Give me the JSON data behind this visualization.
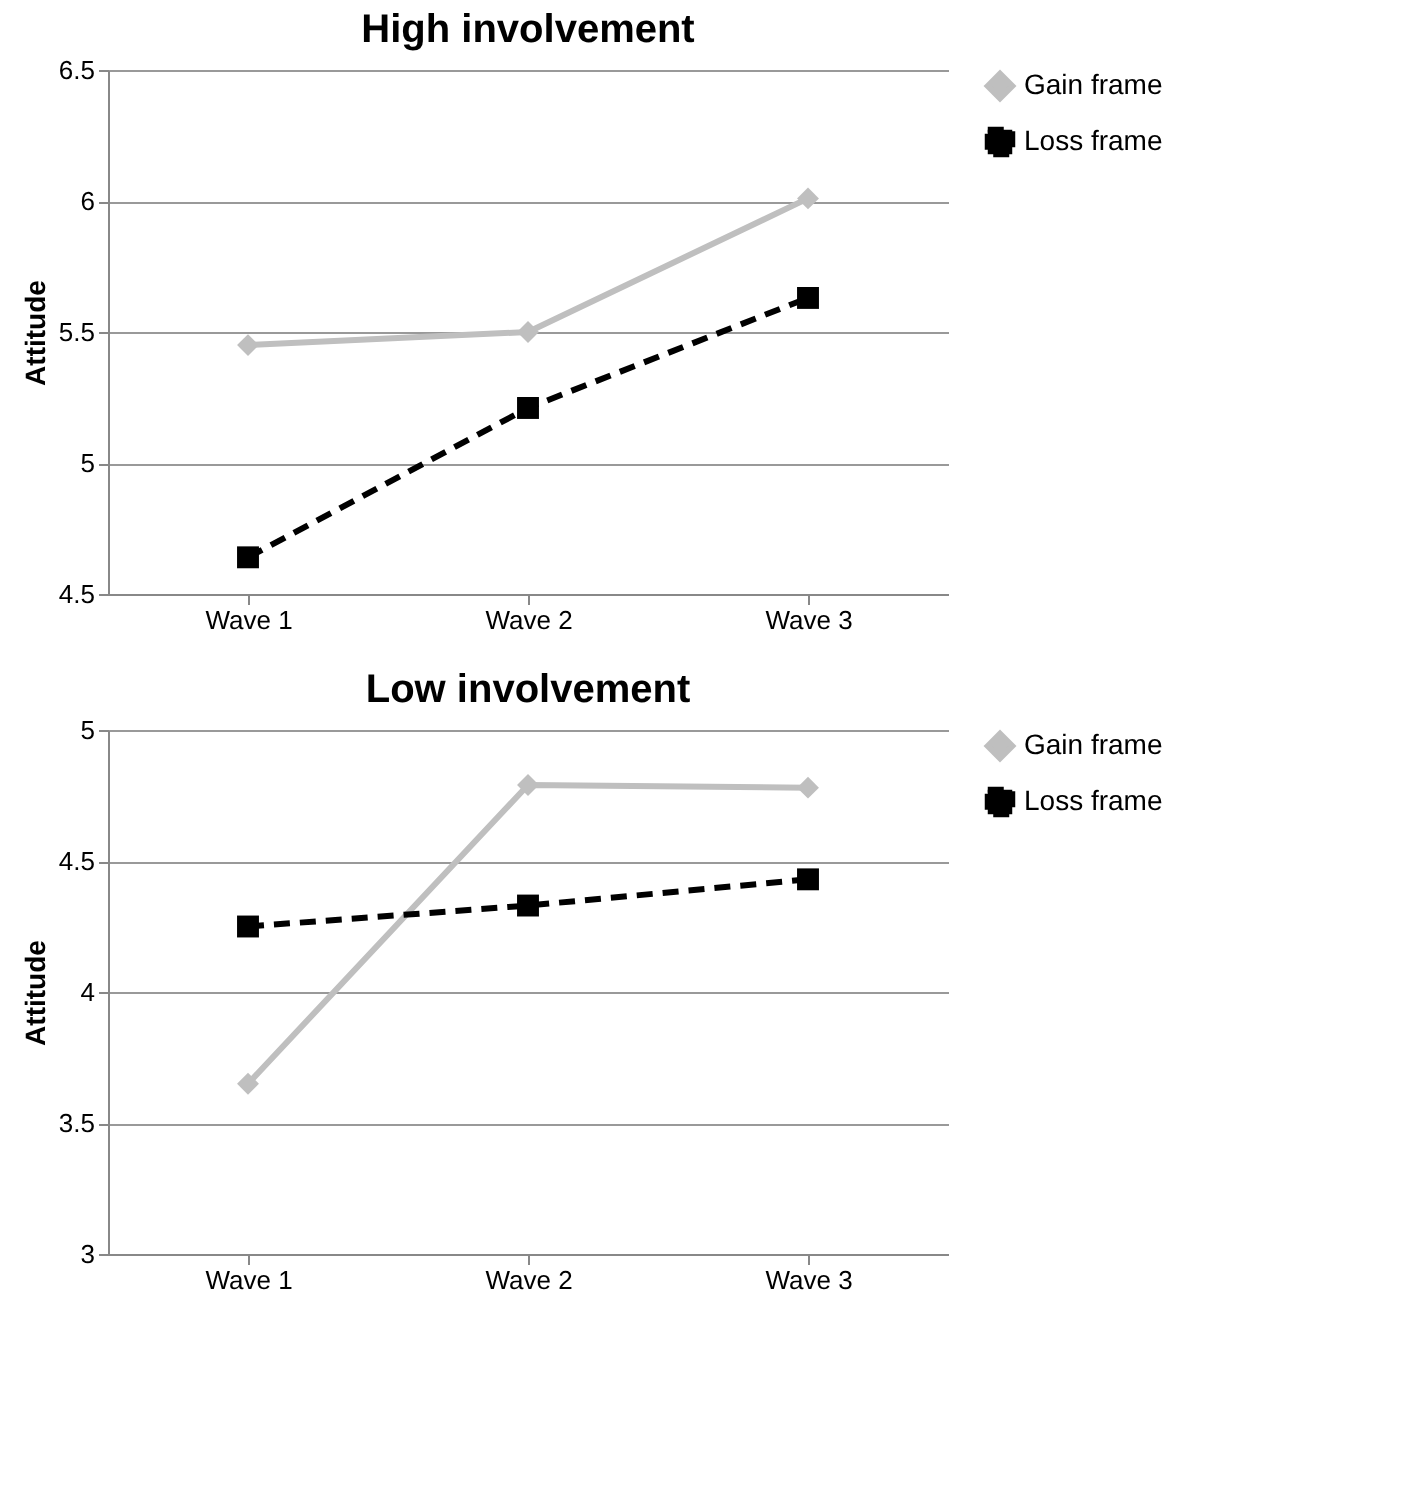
{
  "chart_data": [
    {
      "type": "line",
      "title": "High involvement",
      "ylabel": "Attitude",
      "categories": [
        "Wave 1",
        "Wave 2",
        "Wave 3"
      ],
      "ylim": [
        4.5,
        6.5
      ],
      "yticks": [
        4.5,
        5,
        5.5,
        6,
        6.5
      ],
      "grid": "y",
      "legend": "right",
      "series": [
        {
          "name": "Gain frame",
          "color": "#bfbfbf",
          "marker": "diamond",
          "line_style": "solid",
          "values": [
            5.45,
            5.5,
            6.01
          ]
        },
        {
          "name": "Loss frame",
          "color": "#000000",
          "marker": "square",
          "line_style": "dashed",
          "values": [
            4.64,
            5.21,
            5.63
          ]
        }
      ]
    },
    {
      "type": "line",
      "title": "Low involvement",
      "ylabel": "Attitude",
      "categories": [
        "Wave 1",
        "Wave 2",
        "Wave 3"
      ],
      "ylim": [
        3,
        5
      ],
      "yticks": [
        3,
        3.5,
        4,
        4.5,
        5
      ],
      "grid": "y",
      "legend": "right",
      "series": [
        {
          "name": "Gain frame",
          "color": "#bfbfbf",
          "marker": "diamond",
          "line_style": "solid",
          "values": [
            3.65,
            4.79,
            4.78
          ]
        },
        {
          "name": "Loss frame",
          "color": "#000000",
          "marker": "square",
          "line_style": "dashed",
          "values": [
            4.25,
            4.33,
            4.43
          ]
        }
      ]
    }
  ]
}
